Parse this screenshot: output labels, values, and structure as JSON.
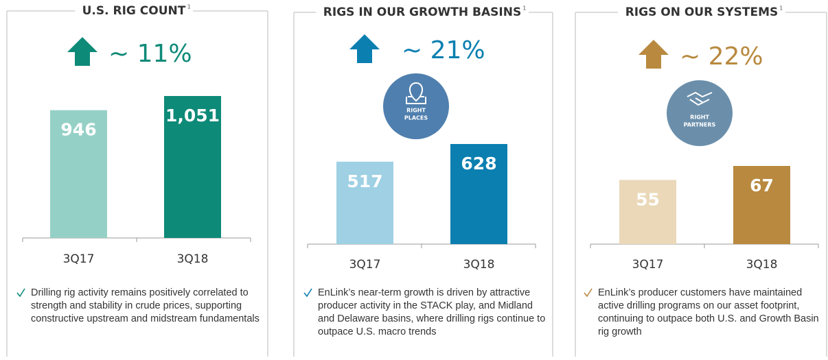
{
  "chart_data": [
    {
      "type": "bar",
      "title": "U.S. RIG COUNT",
      "title_note": "1",
      "change": "~ 11%",
      "categories": [
        "3Q17",
        "3Q18"
      ],
      "values": [
        946,
        1051
      ],
      "value_labels": [
        "946",
        "1,051"
      ],
      "colors": [
        "#95d0c6",
        "#0e8a78"
      ],
      "note": "Drilling rig activity remains positively correlated to strength and stability in crude prices, supporting constructive upstream and midstream fundamentals"
    },
    {
      "type": "bar",
      "title": "RIGS IN OUR GROWTH BASINS",
      "title_note": "1",
      "change": "~ 21%",
      "icon_label": [
        "RIGHT",
        "PLACES"
      ],
      "categories": [
        "3Q17",
        "3Q18"
      ],
      "values": [
        517,
        628
      ],
      "value_labels": [
        "517",
        "628"
      ],
      "colors": [
        "#9fd0e4",
        "#0a7fb0"
      ],
      "note": "EnLink’s near-term growth is driven by attractive producer activity in the STACK play, and Midland and Delaware basins, where drilling rigs continue to outpace U.S. macro trends"
    },
    {
      "type": "bar",
      "title": "RIGS ON OUR SYSTEMS",
      "title_note": "1",
      "change": "~ 22%",
      "icon_label": [
        "RIGHT",
        "PARTNERS"
      ],
      "categories": [
        "3Q17",
        "3Q18"
      ],
      "values": [
        55,
        67
      ],
      "value_labels": [
        "55",
        "67"
      ],
      "colors": [
        "#ead8b8",
        "#b8893f"
      ],
      "note": "EnLink’s producer customers have maintained active drilling programs on our asset footprint, continuing to outpace both U.S. and Growth Basin rig growth"
    }
  ]
}
